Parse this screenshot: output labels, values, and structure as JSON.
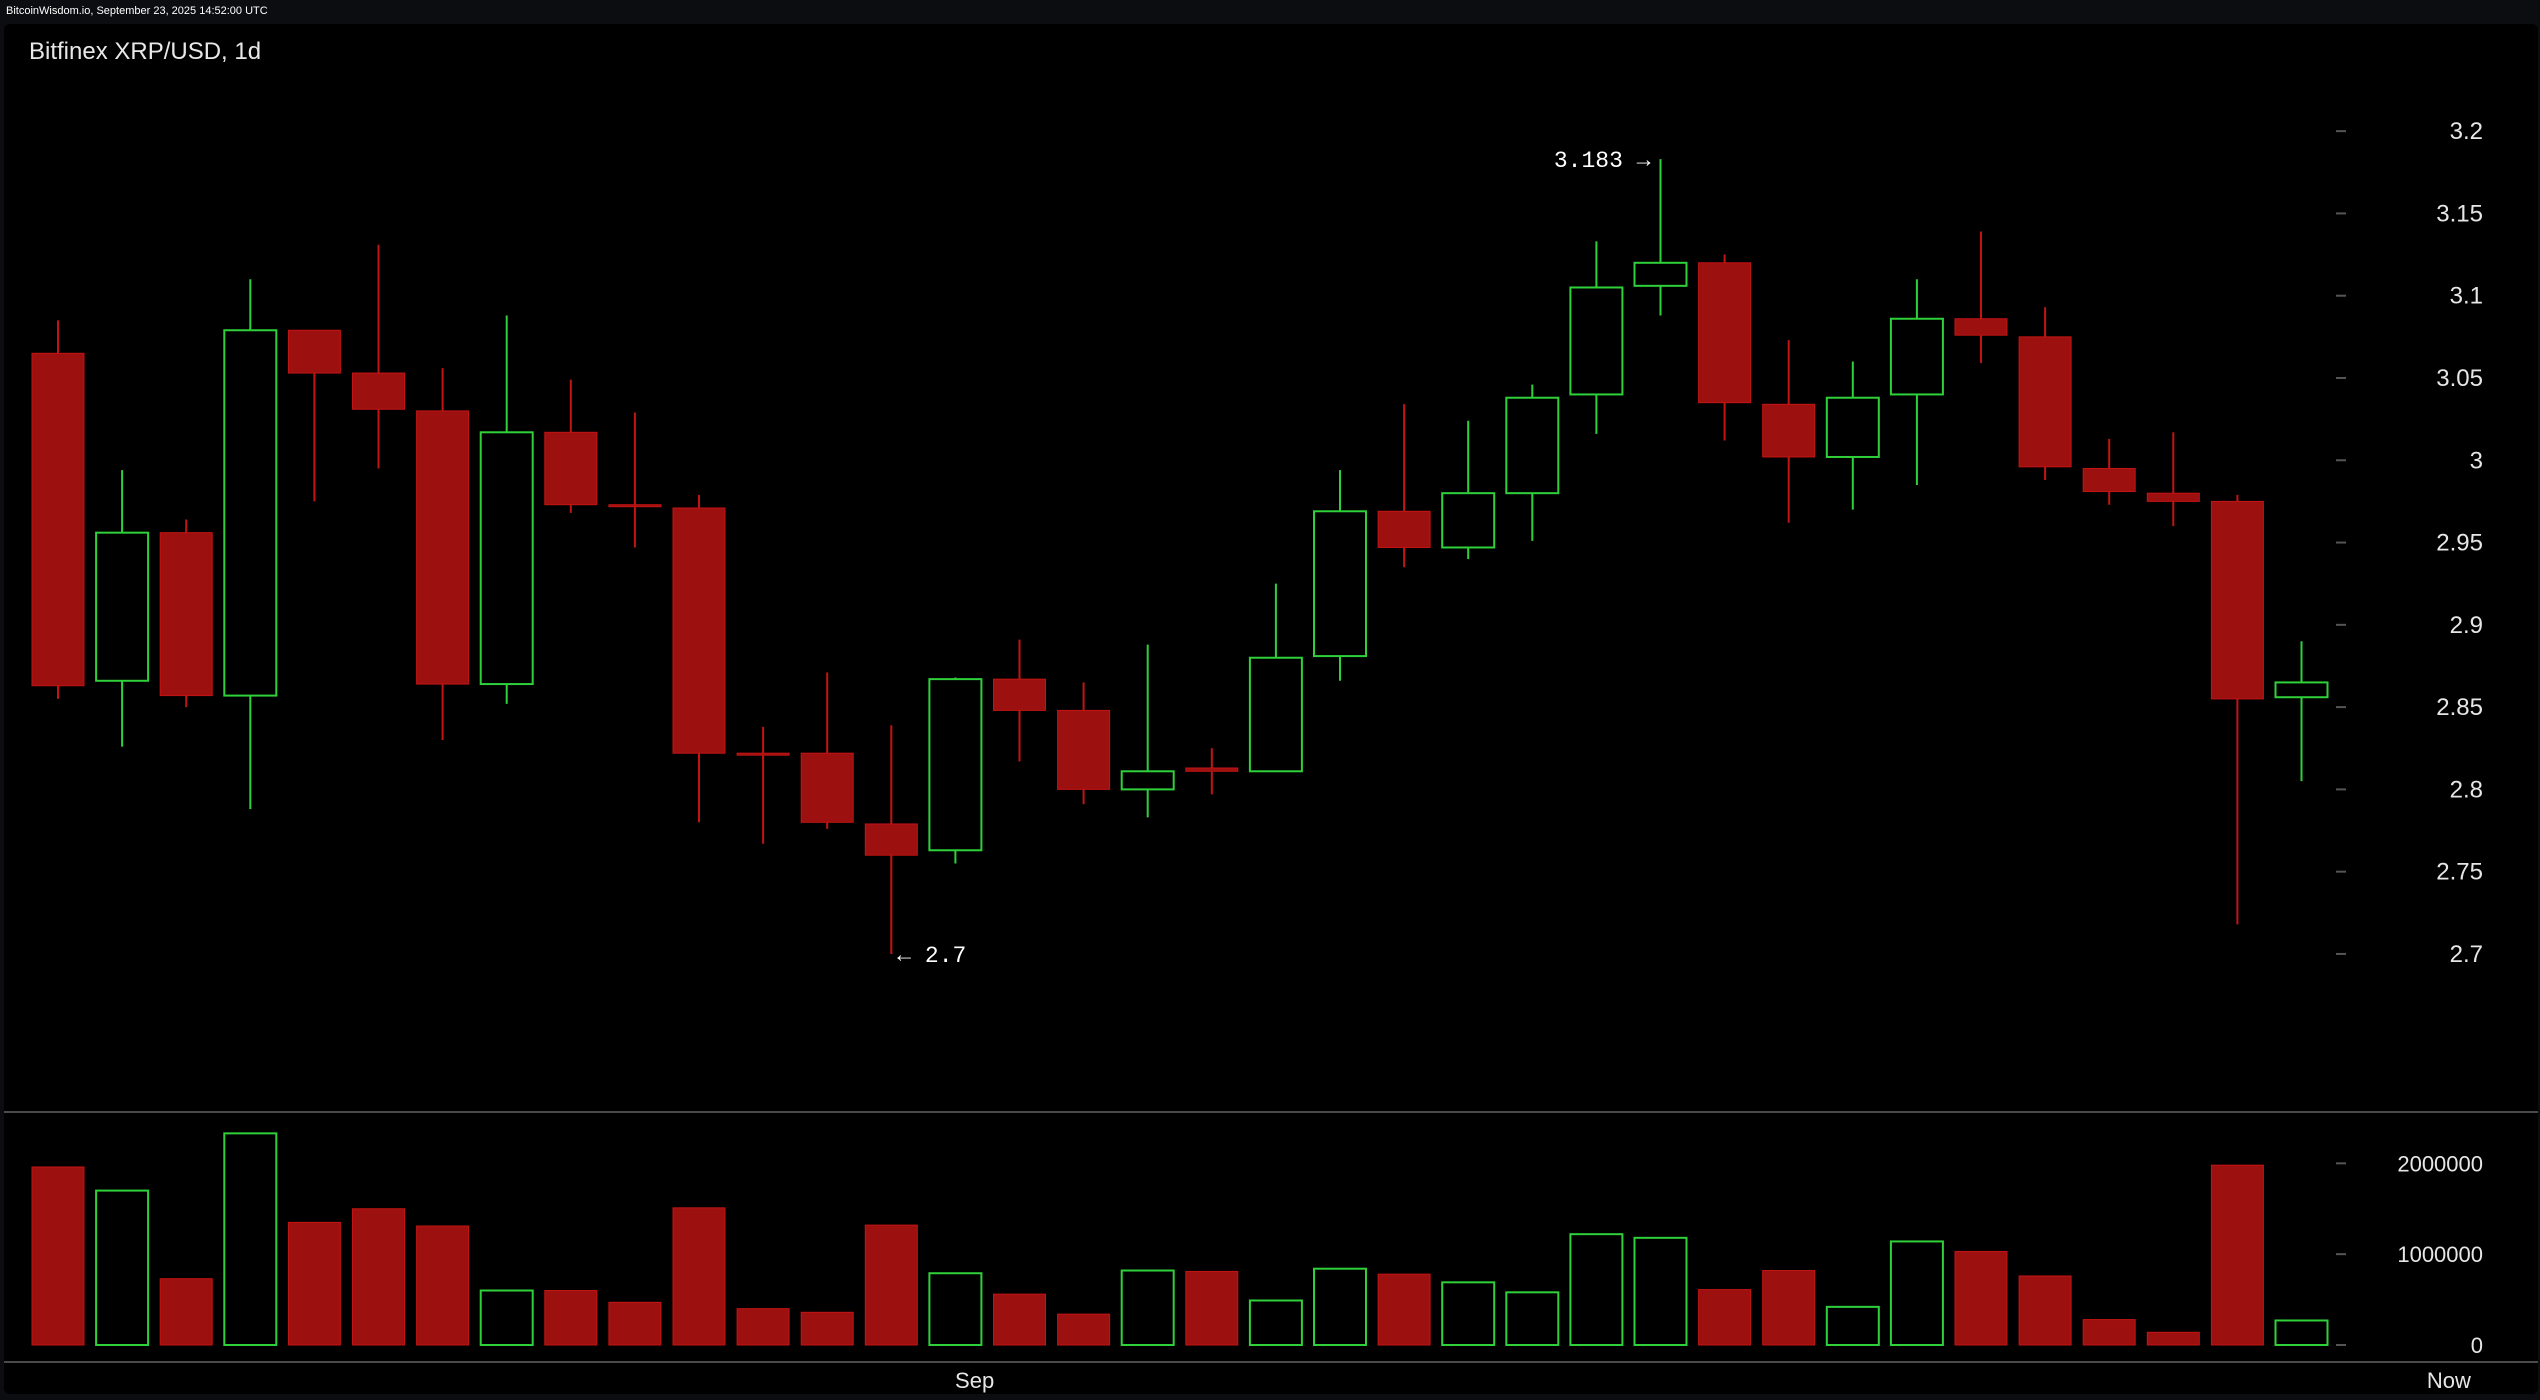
{
  "header": {
    "watermark": "BitcoinWisdom.io, September 23, 2025 14:52:00 UTC",
    "pair": "Bitfinex XRP/USD, 1d"
  },
  "colors": {
    "up": "#2fd13a",
    "down": "#9d1010",
    "down_wick": "#c31414",
    "axis_text": "#e6e6e6",
    "grid_tick": "#555555",
    "background": "#000000"
  },
  "annotations": {
    "high_label": "3.183 →",
    "low_label": "← 2.7"
  },
  "chart_data": {
    "type": "candlestick",
    "interval": "1d",
    "price_axis": {
      "ylim": [
        2.655,
        3.225
      ],
      "ticks": [
        {
          "value": 3.2,
          "label": "3.2"
        },
        {
          "value": 3.15,
          "label": "3.15"
        },
        {
          "value": 3.1,
          "label": "3.1"
        },
        {
          "value": 3.05,
          "label": "3.05"
        },
        {
          "value": 3.0,
          "label": "3"
        },
        {
          "value": 2.95,
          "label": "2.95"
        },
        {
          "value": 2.9,
          "label": "2.9"
        },
        {
          "value": 2.85,
          "label": "2.85"
        },
        {
          "value": 2.8,
          "label": "2.8"
        },
        {
          "value": 2.75,
          "label": "2.75"
        },
        {
          "value": 2.7,
          "label": "2.7"
        }
      ]
    },
    "volume_axis": {
      "ylim": [
        0,
        2400000
      ],
      "ticks": [
        {
          "value": 2000000,
          "label": "2000000"
        },
        {
          "value": 1000000,
          "label": "1000000"
        },
        {
          "value": 0,
          "label": "0"
        }
      ]
    },
    "x_labels": [
      {
        "index": 14.3,
        "label": "Sep"
      },
      {
        "index": 37.3,
        "label": "Now"
      }
    ],
    "candles": [
      {
        "o": 3.065,
        "h": 3.085,
        "l": 2.855,
        "c": 2.863,
        "v": 1960000
      },
      {
        "o": 2.866,
        "h": 2.994,
        "l": 2.826,
        "c": 2.956,
        "v": 1700000
      },
      {
        "o": 2.956,
        "h": 2.964,
        "l": 2.85,
        "c": 2.857,
        "v": 730000
      },
      {
        "o": 2.857,
        "h": 3.11,
        "l": 2.788,
        "c": 3.079,
        "v": 2330000
      },
      {
        "o": 3.079,
        "h": 3.079,
        "l": 2.975,
        "c": 3.053,
        "v": 1350000
      },
      {
        "o": 3.053,
        "h": 3.131,
        "l": 2.995,
        "c": 3.031,
        "v": 1500000
      },
      {
        "o": 3.03,
        "h": 3.056,
        "l": 2.83,
        "c": 2.864,
        "v": 1310000
      },
      {
        "o": 2.864,
        "h": 3.088,
        "l": 2.852,
        "c": 3.017,
        "v": 600000
      },
      {
        "o": 3.017,
        "h": 3.049,
        "l": 2.968,
        "c": 2.973,
        "v": 600000
      },
      {
        "o": 2.973,
        "h": 3.029,
        "l": 2.947,
        "c": 2.972,
        "v": 470000
      },
      {
        "o": 2.971,
        "h": 2.979,
        "l": 2.78,
        "c": 2.822,
        "v": 1510000
      },
      {
        "o": 2.822,
        "h": 2.838,
        "l": 2.767,
        "c": 2.821,
        "v": 400000
      },
      {
        "o": 2.822,
        "h": 2.871,
        "l": 2.776,
        "c": 2.78,
        "v": 360000
      },
      {
        "o": 2.779,
        "h": 2.839,
        "l": 2.7,
        "c": 2.76,
        "v": 1320000
      },
      {
        "o": 2.763,
        "h": 2.868,
        "l": 2.755,
        "c": 2.867,
        "v": 790000
      },
      {
        "o": 2.867,
        "h": 2.891,
        "l": 2.817,
        "c": 2.848,
        "v": 560000
      },
      {
        "o": 2.848,
        "h": 2.865,
        "l": 2.791,
        "c": 2.8,
        "v": 340000
      },
      {
        "o": 2.8,
        "h": 2.888,
        "l": 2.783,
        "c": 2.811,
        "v": 820000
      },
      {
        "o": 2.813,
        "h": 2.825,
        "l": 2.797,
        "c": 2.811,
        "v": 810000
      },
      {
        "o": 2.811,
        "h": 2.925,
        "l": 2.811,
        "c": 2.88,
        "v": 490000
      },
      {
        "o": 2.881,
        "h": 2.994,
        "l": 2.866,
        "c": 2.969,
        "v": 840000
      },
      {
        "o": 2.969,
        "h": 3.034,
        "l": 2.935,
        "c": 2.947,
        "v": 780000
      },
      {
        "o": 2.947,
        "h": 3.024,
        "l": 2.94,
        "c": 2.98,
        "v": 690000
      },
      {
        "o": 2.98,
        "h": 3.046,
        "l": 2.951,
        "c": 3.038,
        "v": 580000
      },
      {
        "o": 3.04,
        "h": 3.133,
        "l": 3.016,
        "c": 3.105,
        "v": 1220000
      },
      {
        "o": 3.106,
        "h": 3.183,
        "l": 3.088,
        "c": 3.12,
        "v": 1180000
      },
      {
        "o": 3.12,
        "h": 3.125,
        "l": 3.012,
        "c": 3.035,
        "v": 610000
      },
      {
        "o": 3.034,
        "h": 3.073,
        "l": 2.962,
        "c": 3.002,
        "v": 820000
      },
      {
        "o": 3.002,
        "h": 3.06,
        "l": 2.97,
        "c": 3.038,
        "v": 420000
      },
      {
        "o": 3.04,
        "h": 3.11,
        "l": 2.985,
        "c": 3.086,
        "v": 1140000
      },
      {
        "o": 3.086,
        "h": 3.139,
        "l": 3.059,
        "c": 3.076,
        "v": 1030000
      },
      {
        "o": 3.075,
        "h": 3.093,
        "l": 2.988,
        "c": 2.996,
        "v": 760000
      },
      {
        "o": 2.995,
        "h": 3.013,
        "l": 2.973,
        "c": 2.981,
        "v": 280000
      },
      {
        "o": 2.98,
        "h": 3.017,
        "l": 2.96,
        "c": 2.975,
        "v": 140000
      },
      {
        "o": 2.975,
        "h": 2.979,
        "l": 2.718,
        "c": 2.855,
        "v": 1980000
      },
      {
        "o": 2.856,
        "h": 2.89,
        "l": 2.805,
        "c": 2.865,
        "v": 270000
      }
    ]
  }
}
